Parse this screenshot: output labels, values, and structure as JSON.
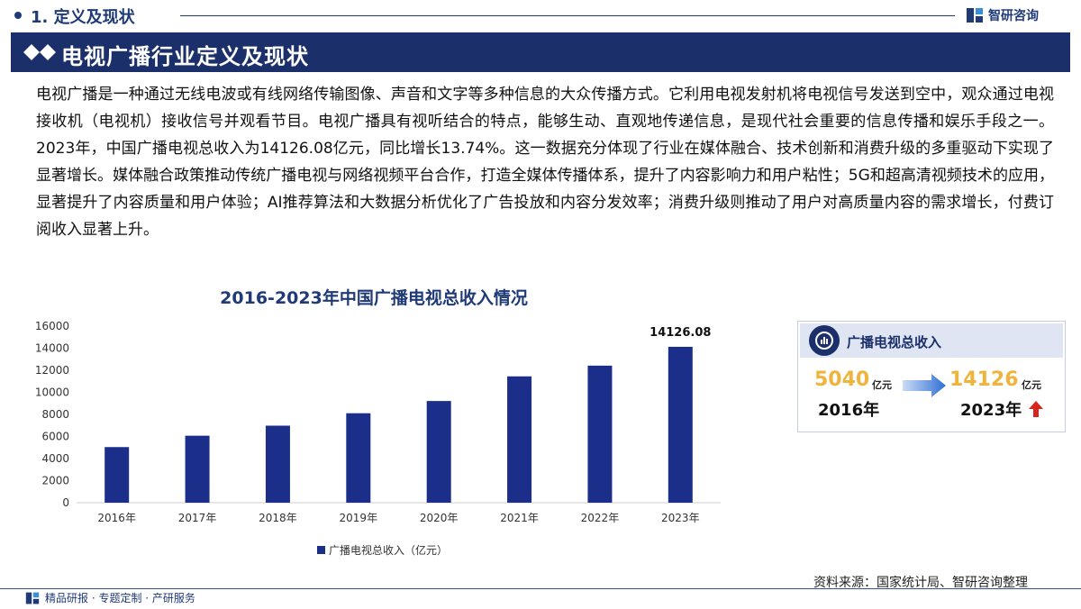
{
  "header": {
    "section_label": "1. 定义及现状",
    "logo_text": "智研咨询"
  },
  "title_bar": {
    "title": "电视广播行业定义及现状"
  },
  "body": {
    "paragraph": "电视广播是一种通过无线电波或有线网络传输图像、声音和文字等多种信息的大众传播方式。它利用电视发射机将电视信号发送到空中，观众通过电视接收机（电视机）接收信号并观看节目。电视广播具有视听结合的特点，能够生动、直观地传递信息，是现代社会重要的信息传播和娱乐手段之一。2023年，中国广播电视总收入为14126.08亿元，同比增长13.74%。这一数据充分体现了行业在媒体融合、技术创新和消费升级的多重驱动下实现了显著增长。媒体融合政策推动传统广播电视与网络视频平台合作，打造全媒体传播体系，提升了内容影响力和用户粘性；5G和超高清视频技术的应用，显著提升了内容质量和用户体验；AI推荐算法和大数据分析优化了广告投放和内容分发效率；消费升级则推动了用户对高质量内容的需求增长，付费订阅收入显著上升。"
  },
  "chart_data": {
    "type": "bar",
    "title": "2016-2023年中国广播电视总收入情况",
    "categories": [
      "2016年",
      "2017年",
      "2018年",
      "2019年",
      "2020年",
      "2021年",
      "2022年",
      "2023年"
    ],
    "series": [
      {
        "name": "广播电视总收入（亿元）",
        "values": [
          5040,
          6070,
          6980,
          8107,
          9215,
          11448,
          12419,
          14126.08
        ]
      }
    ],
    "data_labels": [
      {
        "index": 7,
        "text": "14126.08"
      }
    ],
    "ylim": [
      0,
      16000
    ],
    "yticks": [
      "0",
      "2000",
      "4000",
      "6000",
      "8000",
      "10000",
      "12000",
      "14000",
      "16000"
    ],
    "legend_position": "bottom",
    "bar_color": "#1b2f8a"
  },
  "card": {
    "title": "广播电视总收入",
    "start_value": "5040",
    "start_unit": "亿元",
    "start_year": "2016年",
    "end_value": "14126",
    "end_unit": "亿元",
    "end_year": "2023年"
  },
  "footer": {
    "source": "资料来源：国家统计局、智研咨询整理",
    "slogan": "精品研报 · 专题定制 · 产研服务"
  },
  "colors": {
    "brand_navy": "#1b2f6b",
    "accent_gold": "#f0b43c",
    "accent_red": "#d9261c"
  }
}
